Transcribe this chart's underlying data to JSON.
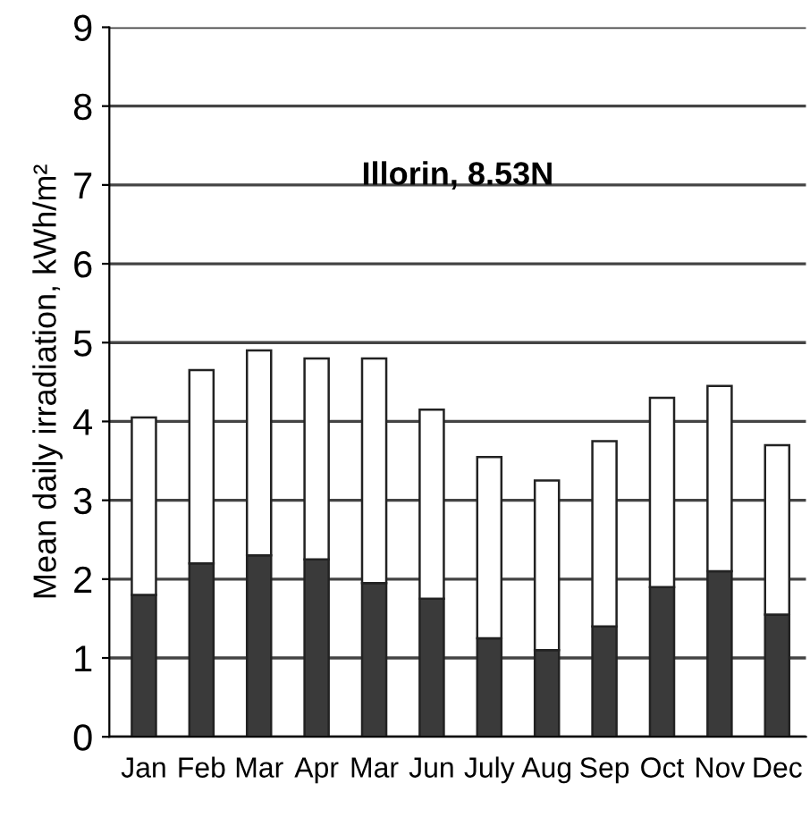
{
  "chart_data": {
    "type": "bar",
    "title": "Illorin, 8.53N",
    "ylabel": "Mean daily irradiation, kWh/m²",
    "categories": [
      "Jan",
      "Feb",
      "Mar",
      "Apr",
      "Mar",
      "Jun",
      "July",
      "Aug",
      "Sep",
      "Oct",
      "Nov",
      "Dec"
    ],
    "stacked": true,
    "series": [
      {
        "color": "#3a3a3a",
        "values": [
          1.8,
          2.2,
          2.3,
          2.25,
          1.95,
          1.75,
          1.25,
          1.1,
          1.4,
          1.9,
          2.1,
          1.55
        ]
      },
      {
        "color": "#ffffff",
        "values": [
          2.25,
          2.45,
          2.6,
          2.55,
          2.85,
          2.4,
          2.3,
          2.15,
          2.35,
          2.4,
          2.35,
          2.15
        ]
      }
    ],
    "ylim": [
      0,
      9
    ],
    "yticks": [
      0,
      1,
      2,
      3,
      4,
      5,
      6,
      7,
      8,
      9
    ],
    "grid": "y"
  }
}
